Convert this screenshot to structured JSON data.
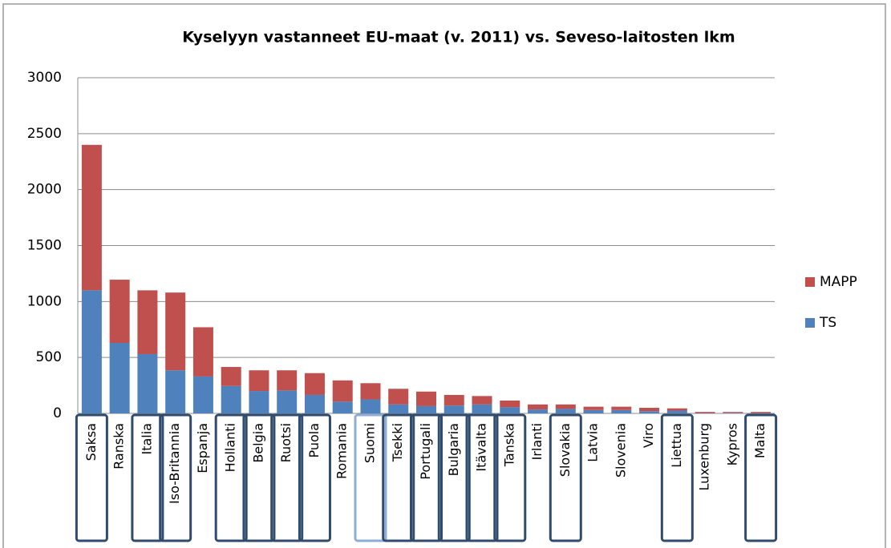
{
  "chart_data": {
    "type": "stacked_bar",
    "title": "Kyselyyn vastanneet EU-maat (v. 2011) vs. Seveso-laitosten lkm",
    "categories": [
      "Saksa",
      "Ranska",
      "Italia",
      "Iso-Britannia",
      "Espanja",
      "Hollanti",
      "Belgia",
      "Ruotsi",
      "Puola",
      "Romania",
      "Suomi",
      "Tsekki",
      "Portugali",
      "Bulgaria",
      "Itävalta",
      "Tanska",
      "Irlanti",
      "Slovakia",
      "Latvia",
      "Slovenia",
      "Viro",
      "Liettua",
      "Luxenburg",
      "Kypros",
      "Malta"
    ],
    "series": [
      {
        "name": "TS",
        "color": "#4f81bd",
        "values": [
          1100,
          630,
          530,
          385,
          330,
          245,
          200,
          205,
          165,
          105,
          125,
          80,
          65,
          70,
          80,
          55,
          35,
          40,
          30,
          30,
          20,
          25,
          3,
          5,
          3
        ]
      },
      {
        "name": "MAPP",
        "color": "#c0504d",
        "values": [
          1300,
          565,
          570,
          695,
          440,
          170,
          185,
          180,
          195,
          190,
          145,
          140,
          130,
          95,
          75,
          60,
          45,
          40,
          30,
          30,
          30,
          20,
          10,
          8,
          10
        ]
      }
    ],
    "highlight": [
      true,
      false,
      true,
      true,
      false,
      true,
      true,
      true,
      true,
      false,
      true,
      true,
      true,
      true,
      true,
      true,
      false,
      true,
      false,
      false,
      false,
      true,
      false,
      false,
      true
    ],
    "ylim": [
      0,
      3000
    ],
    "yticks": [
      0,
      500,
      1000,
      1500,
      2000,
      2500,
      3000
    ],
    "grid": true,
    "legend": "right"
  }
}
